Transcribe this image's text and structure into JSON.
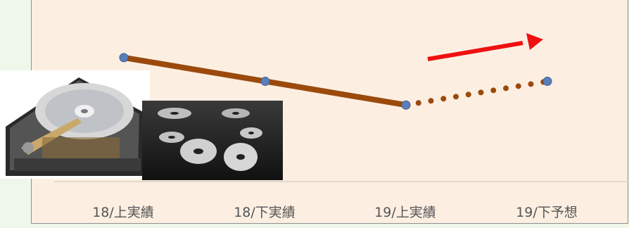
{
  "chart_data": {
    "type": "line",
    "categories": [
      "18/上実績",
      "18/下実績",
      "19/上実績",
      "19/下予想"
    ],
    "series": [
      {
        "values": [
          0.68,
          0.55,
          0.42,
          0.55
        ],
        "segments": [
          {
            "from": 0,
            "to": 2,
            "style": "solid"
          },
          {
            "from": 2,
            "to": 3,
            "style": "dotted"
          }
        ],
        "color": "#9b4a0c",
        "marker_color": "#5a7fb8"
      }
    ],
    "ylim": [
      0,
      1
    ],
    "y_axis_visible": false,
    "grid": false,
    "trend_arrow": {
      "color": "#ee1111",
      "direction": "up"
    }
  },
  "images": [
    {
      "name": "hard-disk-drive",
      "description": "hard disk drive photo"
    },
    {
      "name": "disk-platters",
      "description": "disk platters photo"
    }
  ]
}
